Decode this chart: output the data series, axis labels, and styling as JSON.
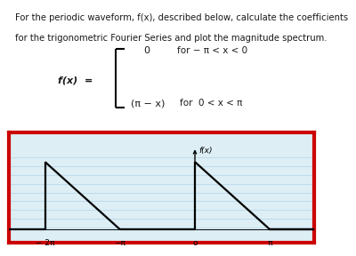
{
  "title_text1": "For the periodic waveform, f(x), described below, calculate the coefficients",
  "title_text2": "for the trigonometric Fourier Series and plot the magnitude spectrum.",
  "func_label": "f(x)  =",
  "case1_val": "0",
  "case1_cond": "for − π < x < 0",
  "case2_val": "(π − x)",
  "case2_cond": "for  0 < x < π",
  "xlabel_ticks": [
    "− 2π",
    "−π",
    "o",
    "π"
  ],
  "xlabel_tick_vals": [
    -6.2832,
    -3.1416,
    0,
    3.1416
  ],
  "plot_xlim": [
    -7.8,
    5.0
  ],
  "plot_ylim": [
    -0.6,
    4.5
  ],
  "pi": 3.14159265358979,
  "plot_bg": "#ddeef5",
  "border_color": "#cc0000",
  "line_color": "#000000",
  "ylabel_text": "f(x)",
  "fig_bg": "#ffffff",
  "text_color": "#1a1a1a",
  "title_fontsize": 7.2,
  "func_fontsize": 8.0,
  "lw": 1.6,
  "border_lw": 3.0
}
